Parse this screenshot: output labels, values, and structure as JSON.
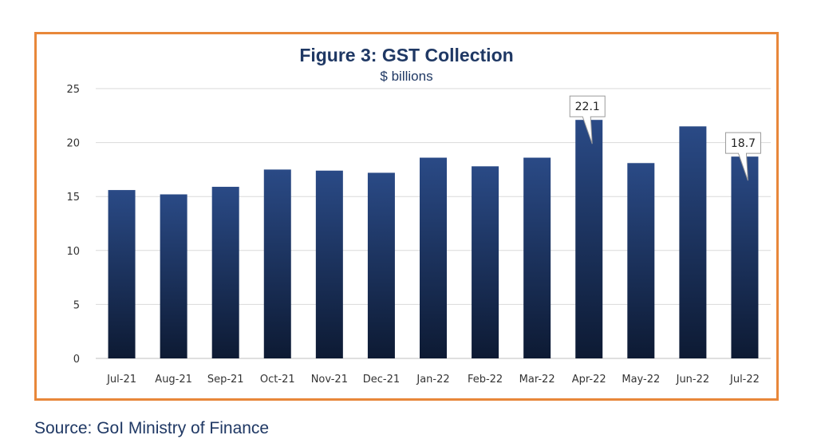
{
  "footer": {
    "source": "Source: GoI Ministry of Finance"
  },
  "colors": {
    "frame_border": "#e8873a",
    "title": "#1f3864",
    "bar_top": "#2a4a86",
    "bar_bottom": "#0d1a33",
    "grid": "#d9d9d9",
    "axis_text": "#333333"
  },
  "chart_data": {
    "type": "bar",
    "title": "Figure 3: GST Collection",
    "subtitle": "$ billions",
    "xlabel": "",
    "ylabel": "",
    "categories": [
      "Jul-21",
      "Aug-21",
      "Sep-21",
      "Oct-21",
      "Nov-21",
      "Dec-21",
      "Jan-22",
      "Feb-22",
      "Mar-22",
      "Apr-22",
      "May-22",
      "Jun-22",
      "Jul-22"
    ],
    "values": [
      15.6,
      15.2,
      15.9,
      17.5,
      17.4,
      17.2,
      18.6,
      17.8,
      18.6,
      22.1,
      18.1,
      21.5,
      18.7
    ],
    "ylim": [
      0,
      25
    ],
    "yticks": [
      0,
      5,
      10,
      15,
      20,
      25
    ],
    "grid": true,
    "legend": "none",
    "annotations": [
      {
        "category": "Apr-22",
        "text": "22.1"
      },
      {
        "category": "Jul-22",
        "text": "18.7"
      }
    ]
  }
}
